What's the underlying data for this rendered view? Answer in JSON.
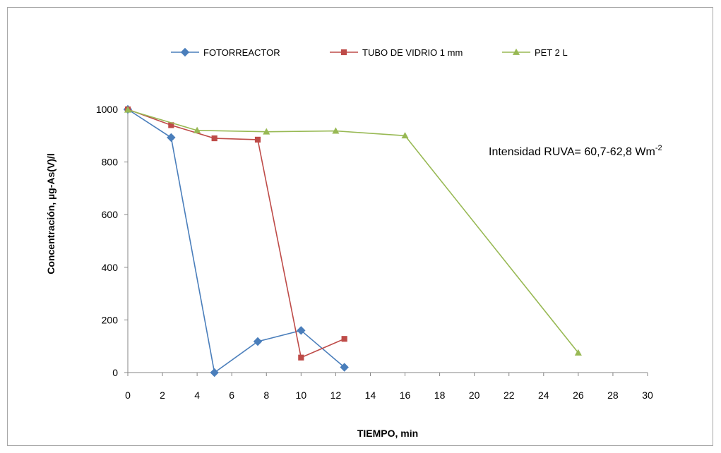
{
  "chart_data": {
    "type": "line",
    "title": "",
    "xlabel": "TIEMPO, min",
    "ylabel": "Concentración, µg-As(V)/l",
    "xlim": [
      0,
      30
    ],
    "ylim": [
      0,
      1000
    ],
    "xticks": [
      0,
      2,
      4,
      6,
      8,
      10,
      12,
      14,
      16,
      18,
      20,
      22,
      24,
      26,
      28,
      30
    ],
    "yticks": [
      0,
      200,
      400,
      600,
      800,
      1000
    ],
    "grid": false,
    "legend_position": "top",
    "annotation": {
      "text": "Intensidad RUVA= 60,7-62,8 Wm",
      "superscript": "-2"
    },
    "series": [
      {
        "name": "FOTORREACTOR",
        "color": "#4a7ebb",
        "marker": "diamond",
        "x": [
          0,
          2.5,
          5,
          7.5,
          10,
          12.5
        ],
        "y": [
          1000,
          893,
          0,
          118,
          160,
          20
        ]
      },
      {
        "name": "TUBO DE VIDRIO 1 mm",
        "color": "#be4b48",
        "marker": "square",
        "x": [
          0,
          2.5,
          5,
          7.5,
          10,
          12.5
        ],
        "y": [
          1000,
          940,
          890,
          885,
          57,
          128
        ]
      },
      {
        "name": "PET 2 L",
        "color": "#98b954",
        "marker": "triangle",
        "x": [
          0,
          4,
          8,
          12,
          16,
          26
        ],
        "y": [
          998,
          920,
          915,
          918,
          900,
          75
        ]
      }
    ]
  }
}
